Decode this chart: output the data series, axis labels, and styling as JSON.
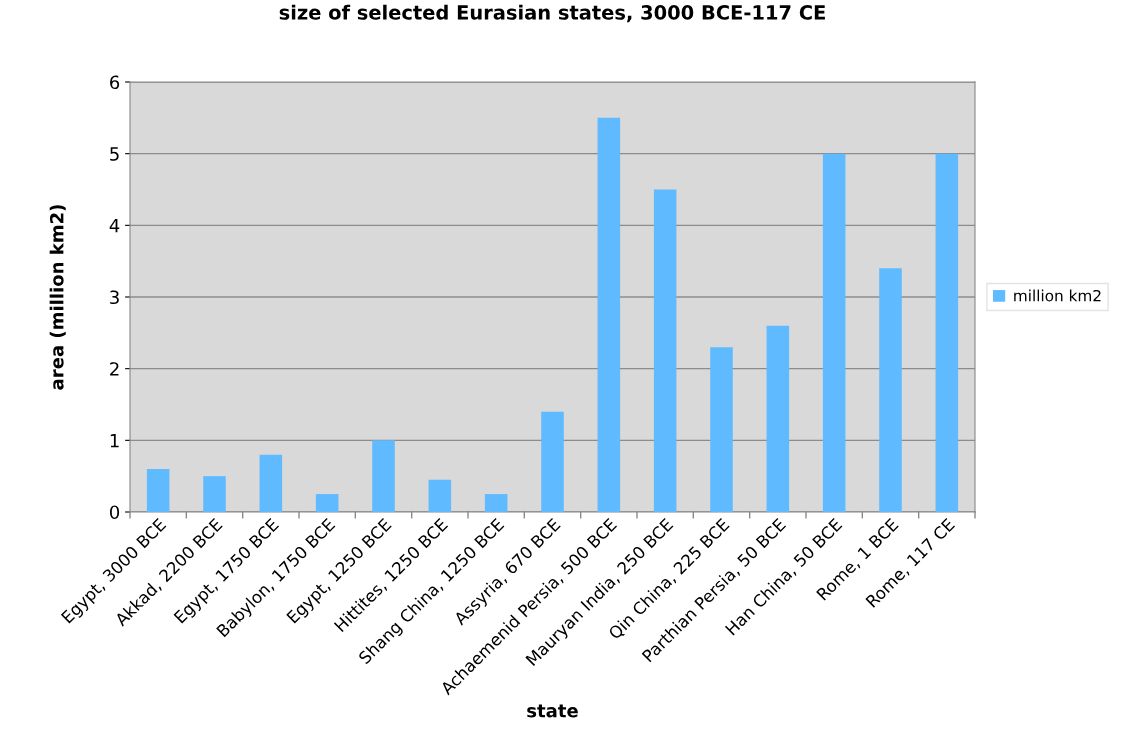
{
  "chart_data": {
    "type": "bar",
    "title": "size of selected Eurasian states, 3000 BCE-117 CE",
    "xlabel": "state",
    "ylabel": "area (million km2)",
    "categories": [
      "Egypt, 3000 BCE",
      "Akkad, 2200 BCE",
      "Egypt, 1750 BCE",
      "Babylon, 1750 BCE",
      "Egypt, 1250 BCE",
      "Hittites, 1250 BCE",
      "Shang China, 1250 BCE",
      "Assyria, 670 BCE",
      "Achaemenid Persia, 500 BCE",
      "Mauryan India, 250 BCE",
      "Qin China, 225 BCE",
      "Parthian Persia, 50 BCE",
      "Han China, 50 BCE",
      "Rome, 1 BCE",
      "Rome, 117 CE"
    ],
    "series": [
      {
        "name": "million km2",
        "color": "#5fbaff",
        "values": [
          0.6,
          0.5,
          0.8,
          0.25,
          1.0,
          0.45,
          0.25,
          1.4,
          5.5,
          4.5,
          2.3,
          2.6,
          5.0,
          3.4,
          5.0
        ]
      }
    ],
    "ylim": [
      0,
      6
    ],
    "yticks": [
      0,
      1,
      2,
      3,
      4,
      5,
      6
    ],
    "grid": "y",
    "legend": "right"
  }
}
